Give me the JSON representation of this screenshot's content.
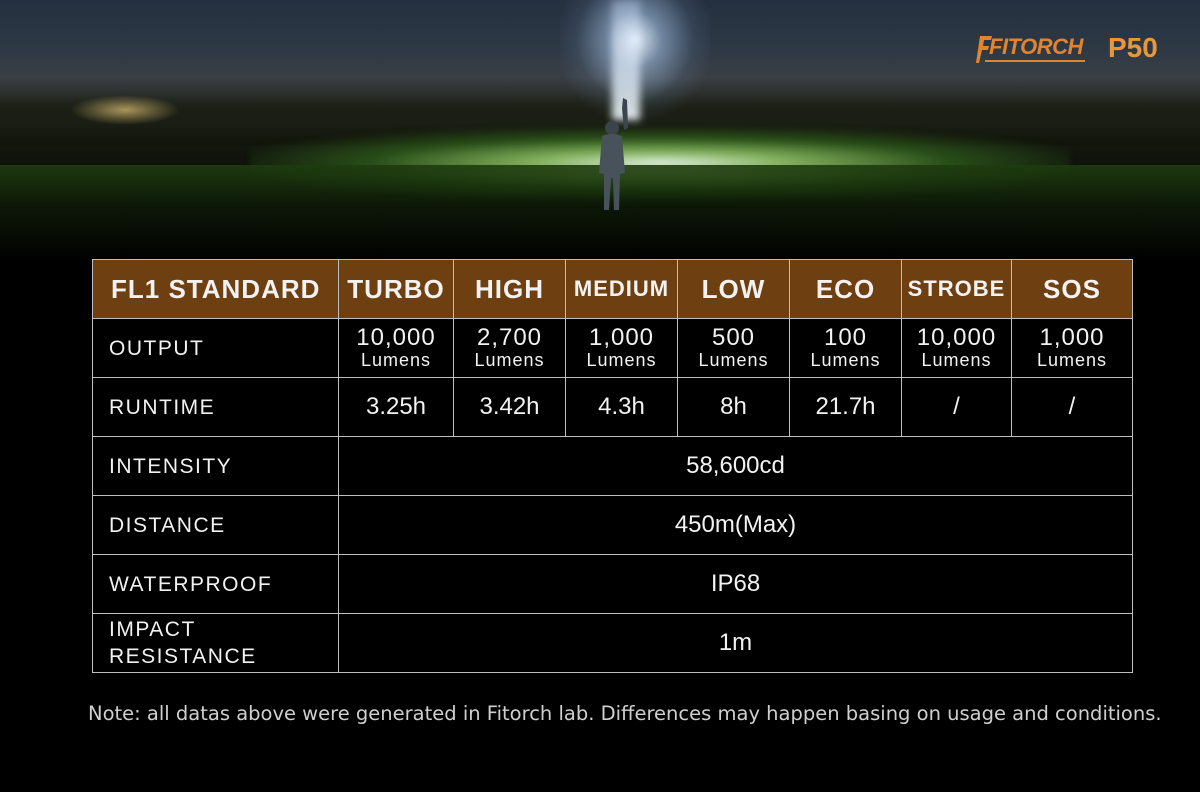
{
  "brand": {
    "name": "FITORCH",
    "model": "P50"
  },
  "table": {
    "header": {
      "standard_label": "FL1 STANDARD",
      "modes": [
        "TURBO",
        "HIGH",
        "MEDIUM",
        "LOW",
        "ECO",
        "STROBE",
        "SOS"
      ]
    },
    "output": {
      "label": "OUTPUT",
      "values": [
        "10,000",
        "2,700",
        "1,000",
        "500",
        "100",
        "10,000",
        "1,000"
      ],
      "unit": "Lumens"
    },
    "runtime": {
      "label": "RUNTIME",
      "values": [
        "3.25h",
        "3.42h",
        "4.3h",
        "8h",
        "21.7h",
        "/",
        "/"
      ]
    },
    "intensity": {
      "label": "INTENSITY",
      "value": "58,600cd"
    },
    "distance": {
      "label": "DISTANCE",
      "value": "450m(Max)"
    },
    "waterproof": {
      "label": "WATERPROOF",
      "value": "IP68"
    },
    "impact": {
      "label_line1": "IMPACT",
      "label_line2": "RESISTANCE",
      "value": "1m"
    }
  },
  "note": "Note: all datas above were generated in Fitorch lab. Differences may happen basing on usage and conditions.",
  "colors": {
    "header_bg": "#6e3f10",
    "brand_orange": "#e2842e",
    "border": "#bfbfbf"
  }
}
